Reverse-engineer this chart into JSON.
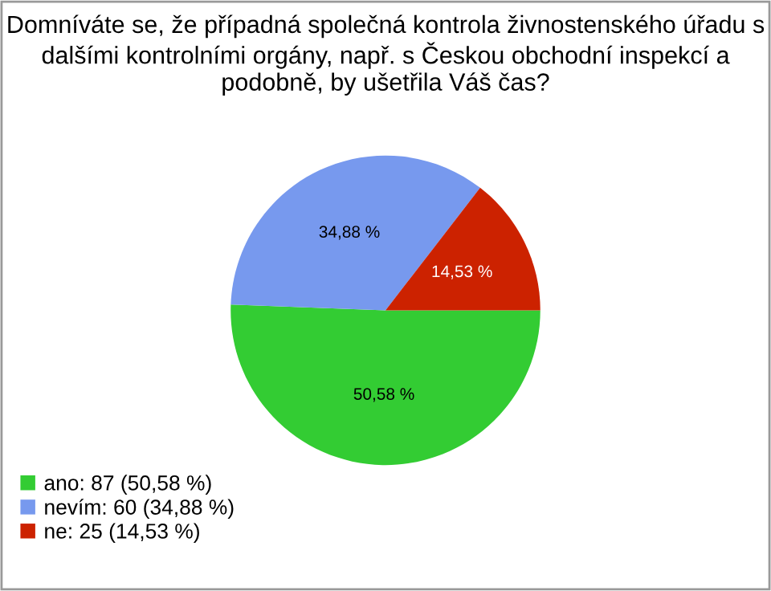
{
  "chart_data": {
    "type": "pie",
    "title": "Domníváte se, že případná společná kontrola živnostenského úřadu s dalšími kontrolními orgány, např. s Českou obchodní inspekcí a podobně, by ušetřila Váš čas?",
    "categories": [
      "ano: 87 (50,58 %)",
      "nevím: 60 (34,88 %)",
      "ne: 25 (14,53 %)"
    ],
    "values": [
      50.58,
      34.88,
      14.53
    ],
    "value_labels": [
      "50,58 %",
      "34,88 %",
      "14,53 %"
    ],
    "colors": [
      "#33cc33",
      "#7799ee",
      "#cc2200"
    ],
    "legend": "bottom left"
  }
}
